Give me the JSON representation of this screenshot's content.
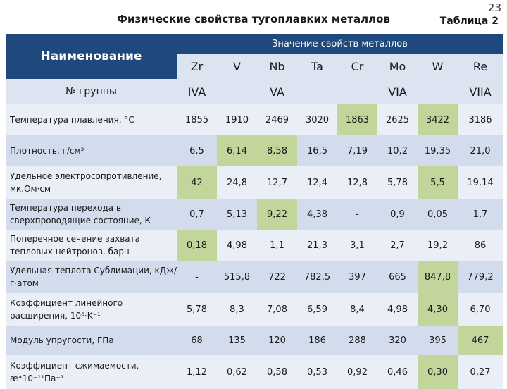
{
  "page_number": "23",
  "title": "Физические свойства тугоплавких металлов",
  "table_label": "Таблица 2",
  "header": {
    "name_label": "Наименование",
    "values_label": "Значение свойств металлов",
    "group_label": "№ группы",
    "metals": [
      "Zr",
      "V",
      "Nb",
      "Ta",
      "Cr",
      "Mo",
      "W",
      "Re"
    ],
    "groups": [
      {
        "label": "IVA",
        "span": 1
      },
      {
        "label": "VA",
        "span": 3
      },
      {
        "label": "VIA",
        "span": 3
      },
      {
        "label": "VIIA",
        "span": 1
      }
    ]
  },
  "highlight_color": "#c2d69b",
  "rows": [
    {
      "label": "Температура плавления, °С",
      "values": [
        "1855",
        "1910",
        "2469",
        "3020",
        "1863",
        "2625",
        "3422",
        "3186"
      ],
      "highlight": [
        4,
        6
      ]
    },
    {
      "label": "Плотность, г/см³",
      "values": [
        "6,5",
        "6,14",
        "8,58",
        "16,5",
        "7,19",
        "10,2",
        "19,35",
        "21,0"
      ],
      "highlight": [
        1,
        2
      ]
    },
    {
      "label": "Удельное электросопротивление, мк.Ом·см",
      "values": [
        "42",
        "24,8",
        "12,7",
        "12,4",
        "12,8",
        "5,78",
        "5,5",
        "19,14"
      ],
      "highlight": [
        0,
        6
      ]
    },
    {
      "label": "Температура перехода в сверхпроводящие состояние, К",
      "values": [
        "0,7",
        "5,13",
        "9,22",
        "4,38",
        "-",
        "0,9",
        "0,05",
        "1,7"
      ],
      "highlight": [
        2
      ]
    },
    {
      "label": "Поперечное сечение захвата тепловых нейтронов, барн",
      "values": [
        "0,18",
        "4,98",
        "1,1",
        "21,3",
        "3,1",
        "2,7",
        "19,2",
        "86"
      ],
      "highlight": [
        0
      ]
    },
    {
      "label": "Удельная теплота Сублимации, кДж/г·атом",
      "values": [
        "-",
        "515,8",
        "722",
        "782,5",
        "397",
        "665",
        "847,8",
        "779,2"
      ],
      "highlight": [
        6
      ]
    },
    {
      "label": "Коэффициент линейного расширения, 10⁶·K⁻¹",
      "values": [
        "5,78",
        "8,3",
        "7,08",
        "6,59",
        "8,4",
        "4,98",
        "4,30",
        "6,70"
      ],
      "highlight": [
        6
      ]
    },
    {
      "label": "Модуль упругости, ГПа",
      "values": [
        "68",
        "135",
        "120",
        "186",
        "288",
        "320",
        "395",
        "467"
      ],
      "highlight": [
        7
      ]
    },
    {
      "label": "Коэффициент сжимаемости, æ*10⁻¹¹Па⁻¹",
      "values": [
        "1,12",
        "0,62",
        "0,58",
        "0,53",
        "0,92",
        "0,46",
        "0,30",
        "0,27"
      ],
      "highlight": [
        6
      ]
    }
  ]
}
